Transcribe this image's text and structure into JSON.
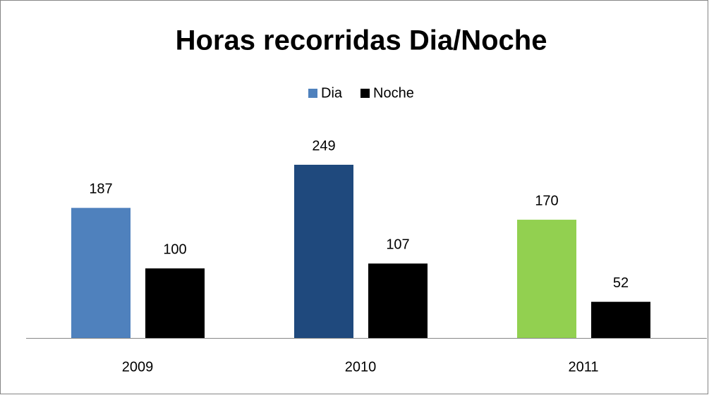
{
  "chart_data": {
    "type": "bar",
    "title": "Horas recorridas Dia/Noche",
    "categories": [
      "2009",
      "2010",
      "2011"
    ],
    "series": [
      {
        "name": "Dia",
        "color": "#4f81bd",
        "colors": [
          "#4f81bd",
          "#1f497d",
          "#92d050"
        ],
        "values": [
          187,
          249,
          170
        ]
      },
      {
        "name": "Noche",
        "color": "#000000",
        "values": [
          100,
          107,
          52
        ]
      }
    ],
    "legend": "top"
  }
}
